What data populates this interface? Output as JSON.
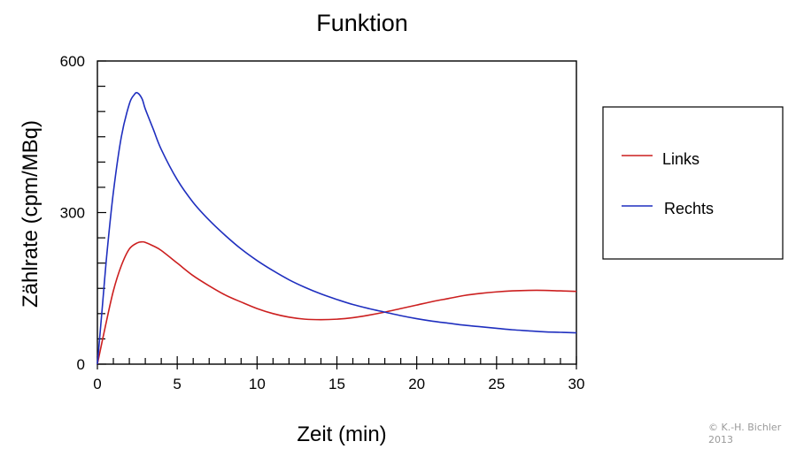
{
  "chart_data": {
    "type": "line",
    "title": "Funktion",
    "xlabel": "Zeit (min)",
    "ylabel": "Zählrate (cpm/MBq)",
    "xlim": [
      0,
      30
    ],
    "ylim": [
      0,
      600
    ],
    "x_ticks": [
      0,
      5,
      10,
      15,
      20,
      25,
      30
    ],
    "x_tick_labels": [
      "0",
      "5",
      "10",
      "15",
      "20",
      "25",
      "30"
    ],
    "y_ticks": [
      0,
      300,
      600
    ],
    "y_tick_labels": [
      "0",
      "300",
      "600"
    ],
    "grid": false,
    "legend_position": "right",
    "series": [
      {
        "name": "Links",
        "color": "#cc1f1f",
        "x": [
          0,
          0.5,
          1,
          1.5,
          2,
          2.5,
          2.8,
          3,
          3.5,
          4,
          5,
          6,
          7,
          8,
          9,
          10,
          11,
          12,
          13,
          14,
          15,
          16,
          17,
          18,
          19,
          20,
          21,
          22,
          23,
          24,
          25,
          26,
          27,
          28,
          29,
          30
        ],
        "y": [
          0,
          75,
          145,
          195,
          228,
          240,
          242,
          241,
          234,
          225,
          200,
          175,
          155,
          137,
          123,
          110,
          100,
          93,
          89,
          88,
          89,
          92,
          97,
          103,
          110,
          117,
          124,
          130,
          136,
          140,
          143,
          145,
          146,
          146,
          145,
          144
        ]
      },
      {
        "name": "Rechts",
        "color": "#1f2fbf",
        "x": [
          0,
          0.3,
          0.6,
          1,
          1.5,
          2,
          2.3,
          2.5,
          2.8,
          3,
          3.5,
          4,
          5,
          6,
          7,
          8,
          9,
          10,
          11,
          12,
          13,
          14,
          15,
          16,
          17,
          18,
          19,
          20,
          21,
          22,
          23,
          24,
          25,
          26,
          27,
          28,
          29,
          30
        ],
        "y": [
          0,
          110,
          220,
          340,
          450,
          515,
          533,
          537,
          525,
          505,
          465,
          425,
          365,
          320,
          285,
          255,
          228,
          205,
          185,
          167,
          152,
          139,
          128,
          118,
          110,
          103,
          96,
          90,
          85,
          81,
          77,
          74,
          71,
          68,
          66,
          64,
          63,
          62
        ]
      }
    ]
  },
  "copyright": {
    "line1": "© K.-H. Bichler",
    "line2": "2013"
  }
}
